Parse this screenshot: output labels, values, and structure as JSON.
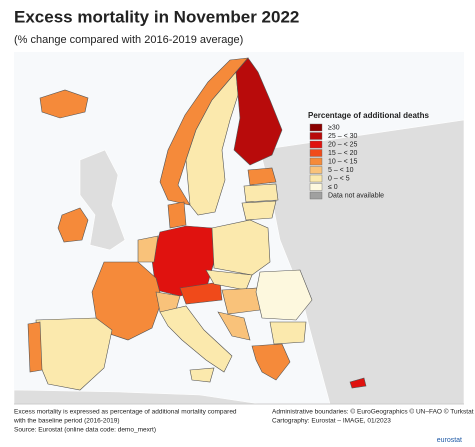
{
  "header": {
    "title": "Excess mortality in November 2022",
    "subtitle": "(% change compared with 2016-2019 average)"
  },
  "legend": {
    "title": "Percentage of additional deaths",
    "items": [
      {
        "label": "≥30",
        "color": "#8b0000"
      },
      {
        "label": "25 – < 30",
        "color": "#b80b0b"
      },
      {
        "label": "20 – < 25",
        "color": "#e0120f"
      },
      {
        "label": "15 – < 20",
        "color": "#f04a1a"
      },
      {
        "label": "10 – < 15",
        "color": "#f58a3a"
      },
      {
        "label": "5 – < 10",
        "color": "#f9c27a"
      },
      {
        "label": "0 – < 5",
        "color": "#fbe9ad"
      },
      {
        "label": "≤ 0",
        "color": "#fdf8de"
      },
      {
        "label": "Data not available",
        "color": "#a0a0a0"
      }
    ]
  },
  "notes": {
    "left": [
      "Excess mortality is expressed as percentage of additional mortality compared",
      "with the baseline period (2016-2019)",
      "Source: Eurostat (online data code: demo_mexrt)"
    ],
    "right": [
      "Administrative boundaries: © EuroGeographics © UN–FAO © Turkstat",
      "Cartography: Eurostat – IMAGE, 01/2023"
    ]
  },
  "logo": "eurostat"
}
